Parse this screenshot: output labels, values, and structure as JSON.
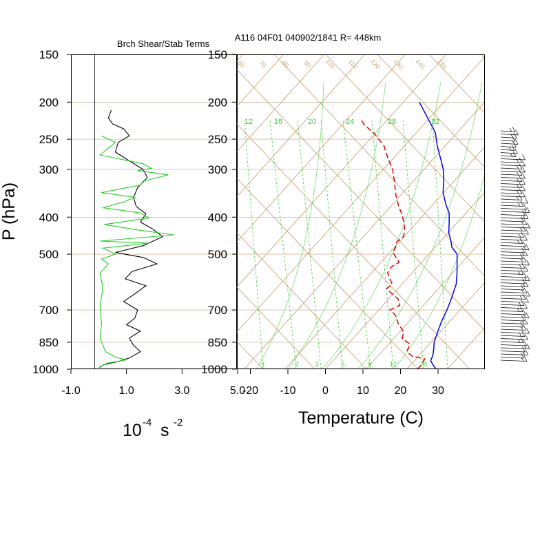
{
  "titles": {
    "left_panel": "Brch Shear/Stab Terms",
    "right_panel": "A116 04F01 040902/1841 R= 448km"
  },
  "colors": {
    "grid_brown": "#c8a478",
    "mixing_ratio_green": "#33cc33",
    "temperature_blue": "#0000dd",
    "dewpoint_red": "#dd0000",
    "shear_black": "#000000",
    "stability_green": "#22cc22"
  },
  "chart_data": [
    {
      "type": "line",
      "panel": "Brch Shear/Stab Terms",
      "title": "Brch Shear/Stab Terms",
      "xlabel": "10-4 s -2",
      "xlabel_main": "10",
      "xlabel_exp1": "-4",
      "xlabel_mid": " s ",
      "xlabel_exp2": "-2",
      "ylabel": "P (hPa)",
      "xlim": [
        -1.0,
        5.0
      ],
      "x_ticks": [
        "-1.0",
        "1.0",
        "3.0",
        "5.0"
      ],
      "y_scale": "log",
      "ylim": [
        1000,
        150
      ],
      "y_ticks": [
        "150",
        "200",
        "250",
        "300",
        "400",
        "500",
        "700",
        "850",
        "1000"
      ],
      "series": [
        {
          "color": "#000000",
          "points": [
            [
              0.45,
              210
            ],
            [
              0.35,
              220
            ],
            [
              0.5,
              228
            ],
            [
              0.9,
              235
            ],
            [
              1.1,
              245
            ],
            [
              0.7,
              255
            ],
            [
              0.6,
              270
            ],
            [
              1.1,
              285
            ],
            [
              1.6,
              300
            ],
            [
              1.75,
              315
            ],
            [
              1.4,
              335
            ],
            [
              1.25,
              355
            ],
            [
              1.35,
              375
            ],
            [
              1.7,
              392
            ],
            [
              1.5,
              412
            ],
            [
              1.95,
              430
            ],
            [
              2.3,
              450
            ],
            [
              1.6,
              475
            ],
            [
              0.6,
              495
            ],
            [
              1.6,
              510
            ],
            [
              2.1,
              530
            ],
            [
              1.2,
              555
            ],
            [
              0.95,
              580
            ],
            [
              1.7,
              605
            ],
            [
              1.3,
              635
            ],
            [
              0.9,
              665
            ],
            [
              1.4,
              700
            ],
            [
              1.3,
              735
            ],
            [
              1.0,
              765
            ],
            [
              1.5,
              795
            ],
            [
              1.1,
              830
            ],
            [
              1.25,
              865
            ],
            [
              1.5,
              900
            ],
            [
              1.1,
              935
            ],
            [
              0.7,
              955
            ],
            [
              0.15,
              975
            ],
            [
              0.05,
              990
            ]
          ]
        },
        {
          "color": "#22cc22",
          "points": [
            [
              0.1,
              245
            ],
            [
              0.6,
              255
            ],
            [
              0.05,
              275
            ],
            [
              1.6,
              290
            ],
            [
              1.9,
              298
            ],
            [
              1.4,
              302
            ],
            [
              2.5,
              310
            ],
            [
              1.6,
              322
            ],
            [
              1.5,
              330
            ],
            [
              1.0,
              335
            ],
            [
              0.1,
              345
            ],
            [
              1.3,
              355
            ],
            [
              0.9,
              365
            ],
            [
              0.15,
              378
            ],
            [
              1.5,
              390
            ],
            [
              1.8,
              402
            ],
            [
              0.2,
              418
            ],
            [
              1.4,
              432
            ],
            [
              2.7,
              445
            ],
            [
              0.05,
              462
            ],
            [
              1.8,
              468
            ],
            [
              0.15,
              482
            ],
            [
              0.6,
              500
            ],
            [
              0.1,
              515
            ],
            [
              0.35,
              530
            ],
            [
              0.05,
              560
            ],
            [
              0.15,
              615
            ],
            [
              0.05,
              680
            ],
            [
              0.1,
              760
            ],
            [
              0.05,
              830
            ],
            [
              0.25,
              900
            ],
            [
              0.6,
              930
            ],
            [
              1.0,
              945
            ],
            [
              0.3,
              965
            ],
            [
              0.0,
              990
            ]
          ]
        }
      ]
    },
    {
      "type": "line",
      "panel": "skew-T log-P",
      "title": "A116 04F01 040902/1841 R= 448km",
      "xlabel": "Temperature (C)",
      "xlim": [
        -25,
        40
      ],
      "x_ticks": [
        "-20",
        "-10",
        "0",
        "10",
        "20",
        "30"
      ],
      "y_scale": "log",
      "ylim": [
        1000,
        150
      ],
      "y_ticks": [
        "150",
        "200",
        "250",
        "300",
        "400",
        "500",
        "700",
        "850",
        "1000"
      ],
      "mixing_ratio_labels_top": [
        "12",
        "16",
        "20",
        "24",
        "28",
        "32"
      ],
      "mixing_ratio_labels_bottom": [
        "1",
        "2",
        "3",
        "5",
        "8",
        "12",
        "20"
      ],
      "isotherm_labels_top": [
        "60",
        "70",
        "80",
        "90",
        "100",
        "110",
        "120",
        "130",
        "140",
        "150"
      ],
      "series": [
        {
          "name": "temperature",
          "color": "#0000dd",
          "style": "solid",
          "points": [
            [
              29.5,
              1000
            ],
            [
              28,
              980
            ],
            [
              26,
              950
            ],
            [
              25.3,
              920
            ],
            [
              23.8,
              880
            ],
            [
              22.5,
              850
            ],
            [
              21,
              800
            ],
            [
              19.5,
              750
            ],
            [
              18.2,
              700
            ],
            [
              16.5,
              650
            ],
            [
              14.5,
              600
            ],
            [
              12,
              560
            ],
            [
              9.8,
              530
            ],
            [
              7.5,
              500
            ],
            [
              4.5,
              480
            ],
            [
              2.5,
              460
            ],
            [
              0.2,
              440
            ],
            [
              -2.5,
              410
            ],
            [
              -4.5,
              390
            ],
            [
              -7.5,
              370
            ],
            [
              -11,
              345
            ],
            [
              -13.8,
              320
            ],
            [
              -16.5,
              300
            ],
            [
              -20,
              280
            ],
            [
              -23.8,
              260
            ],
            [
              -27.5,
              240
            ],
            [
              -33,
              220
            ],
            [
              -39,
              200
            ]
          ]
        },
        {
          "name": "dewpoint",
          "color": "#dd0000",
          "style": "dashed",
          "points": [
            [
              24.5,
              1000
            ],
            [
              24.5,
              970
            ],
            [
              24,
              940
            ],
            [
              20,
              925
            ],
            [
              17.5,
              900
            ],
            [
              17,
              880
            ],
            [
              16.5,
              860
            ],
            [
              13,
              830
            ],
            [
              12,
              800
            ],
            [
              8.5,
              760
            ],
            [
              5.5,
              720
            ],
            [
              3,
              700
            ],
            [
              4.5,
              680
            ],
            [
              2.5,
              655
            ],
            [
              -1,
              630
            ],
            [
              -3,
              615
            ],
            [
              -2.5,
              600
            ],
            [
              -4.5,
              580
            ],
            [
              -6.5,
              560
            ],
            [
              -7,
              540
            ],
            [
              -6,
              525
            ],
            [
              -8,
              510
            ],
            [
              -10,
              495
            ],
            [
              -10.5,
              480
            ],
            [
              -11.5,
              465
            ],
            [
              -11,
              450
            ],
            [
              -12,
              435
            ],
            [
              -13.5,
              420
            ],
            [
              -16.5,
              395
            ],
            [
              -19.5,
              375
            ],
            [
              -23,
              350
            ],
            [
              -27,
              320
            ],
            [
              -30,
              300
            ],
            [
              -34,
              280
            ],
            [
              -38,
              260
            ],
            [
              -44,
              240
            ],
            [
              -48,
              230
            ],
            [
              -51,
              220
            ]
          ]
        }
      ]
    }
  ]
}
